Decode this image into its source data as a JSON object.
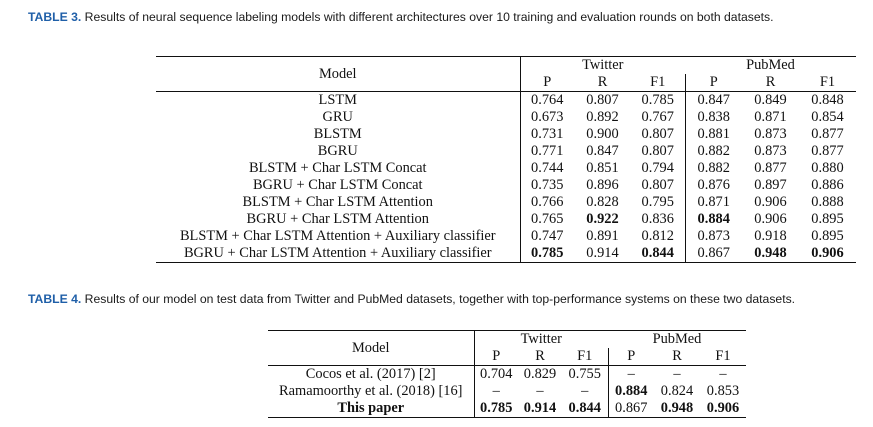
{
  "table3": {
    "label": "TABLE 3.",
    "caption": "Results of neural sequence labeling models with different architectures over 10 training and evaluation rounds on both datasets.",
    "model_header": "Model",
    "groups": [
      "Twitter",
      "PubMed"
    ],
    "sub": [
      "P",
      "R",
      "F1",
      "P",
      "R",
      "F1"
    ],
    "rows": [
      {
        "name": "LSTM",
        "v": [
          "0.764",
          "0.807",
          "0.785",
          "0.847",
          "0.849",
          "0.848"
        ],
        "bold": []
      },
      {
        "name": "GRU",
        "v": [
          "0.673",
          "0.892",
          "0.767",
          "0.838",
          "0.871",
          "0.854"
        ],
        "bold": []
      },
      {
        "name": "BLSTM",
        "v": [
          "0.731",
          "0.900",
          "0.807",
          "0.881",
          "0.873",
          "0.877"
        ],
        "bold": []
      },
      {
        "name": "BGRU",
        "v": [
          "0.771",
          "0.847",
          "0.807",
          "0.882",
          "0.873",
          "0.877"
        ],
        "bold": []
      },
      {
        "name": "BLSTM + Char LSTM Concat",
        "v": [
          "0.744",
          "0.851",
          "0.794",
          "0.882",
          "0.877",
          "0.880"
        ],
        "bold": []
      },
      {
        "name": "BGRU + Char LSTM Concat",
        "v": [
          "0.735",
          "0.896",
          "0.807",
          "0.876",
          "0.897",
          "0.886"
        ],
        "bold": []
      },
      {
        "name": "BLSTM + Char LSTM Attention",
        "v": [
          "0.766",
          "0.828",
          "0.795",
          "0.871",
          "0.906",
          "0.888"
        ],
        "bold": []
      },
      {
        "name": "BGRU + Char LSTM Attention",
        "v": [
          "0.765",
          "0.922",
          "0.836",
          "0.884",
          "0.906",
          "0.895"
        ],
        "bold": [
          1,
          3
        ]
      },
      {
        "name": "BLSTM + Char LSTM Attention + Auxiliary classifier",
        "v": [
          "0.747",
          "0.891",
          "0.812",
          "0.873",
          "0.918",
          "0.895"
        ],
        "bold": []
      },
      {
        "name": "BGRU + Char LSTM Attention + Auxiliary classifier",
        "v": [
          "0.785",
          "0.914",
          "0.844",
          "0.867",
          "0.948",
          "0.906"
        ],
        "bold": [
          0,
          2,
          4,
          5
        ]
      }
    ]
  },
  "table4": {
    "label": "TABLE 4.",
    "caption": "Results of our model on test data from Twitter and PubMed datasets, together with top-performance systems on these two datasets.",
    "model_header": "Model",
    "groups": [
      "Twitter",
      "PubMed"
    ],
    "sub": [
      "P",
      "R",
      "F1",
      "P",
      "R",
      "F1"
    ],
    "rows": [
      {
        "name": "Cocos et al. (2017) [2]",
        "v": [
          "0.704",
          "0.829",
          "0.755",
          "–",
          "–",
          "–"
        ],
        "bold": [],
        "name_bold": false
      },
      {
        "name": "Ramamoorthy et al. (2018) [16]",
        "v": [
          "–",
          "–",
          "–",
          "0.884",
          "0.824",
          "0.853"
        ],
        "bold": [
          3
        ],
        "name_bold": false
      },
      {
        "name": "This paper",
        "v": [
          "0.785",
          "0.914",
          "0.844",
          "0.867",
          "0.948",
          "0.906"
        ],
        "bold": [
          0,
          1,
          2,
          4,
          5
        ],
        "name_bold": true
      }
    ]
  }
}
